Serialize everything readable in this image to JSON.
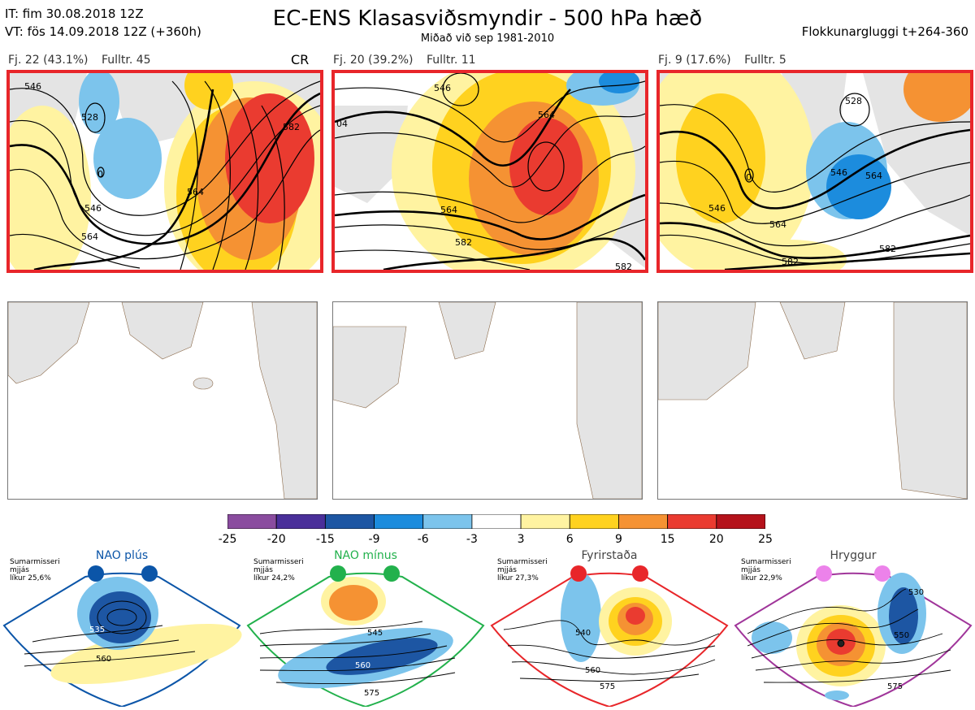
{
  "header": {
    "it_line": "IT: fim 30.08.2018 12Z",
    "vt_line": "VT: fös 14.09.2018 12Z  (+360h)",
    "title": "EC-ENS Klasasviðsmyndir - 500 hPa hæð",
    "subtitle": "Miðað við sep 1981-2010",
    "window": "Flokkunargluggi t+264-360"
  },
  "clusters": [
    {
      "count": "Fj. 22 (43.1%)",
      "rep": "Fulltr. 45",
      "tag": "CR",
      "labels": [
        "546",
        "564",
        "582",
        "528",
        "0",
        "546",
        "564"
      ]
    },
    {
      "count": "Fj. 20 (39.2%)",
      "rep": "Fulltr. 11",
      "tag": "",
      "labels": [
        "546",
        "564",
        "582",
        "564",
        "04",
        "582"
      ]
    },
    {
      "count": "Fj. 9 (17.6%)",
      "rep": "Fulltr. 5",
      "tag": "",
      "labels": [
        "528",
        "546",
        "564",
        "582",
        "546",
        "564",
        "582",
        "0"
      ]
    }
  ],
  "colorbar": {
    "ticks": [
      "-25",
      "-20",
      "-15",
      "-9",
      "-6",
      "-3",
      "3",
      "6",
      "9",
      "15",
      "20",
      "25"
    ],
    "colors": [
      "#8a4c9f",
      "#4a2f9a",
      "#1d56a3",
      "#1c8cdd",
      "#7cc4ec",
      "#ffffff",
      "#fff3a1",
      "#ffd21f",
      "#f59233",
      "#ea3b30",
      "#b5121b"
    ]
  },
  "regimes": [
    {
      "name": "NAO plús",
      "note1": "Sumarmisseri",
      "note2": "mjjás",
      "note3": "líkur 25,6%",
      "color": "#0b55a8",
      "labels": [
        "535",
        "560"
      ]
    },
    {
      "name": "NAO mínus",
      "note1": "Sumarmisseri",
      "note2": "mjjás",
      "note3": "líkur 24,2%",
      "color": "#22b14c",
      "labels": [
        "545",
        "560",
        "575"
      ]
    },
    {
      "name": "Fyrirstaða",
      "note1": "Sumarmisseri",
      "note2": "mjjás",
      "note3": "líkur 27,3%",
      "color": "#e8262a",
      "labels": [
        "540",
        "560",
        "575"
      ]
    },
    {
      "name": "Hryggur",
      "note1": "Sumarmisseri",
      "note2": "mjjás",
      "note3": "líkur 22,9%",
      "color": "#a0359a",
      "labels": [
        "530",
        "550",
        "575"
      ]
    }
  ]
}
